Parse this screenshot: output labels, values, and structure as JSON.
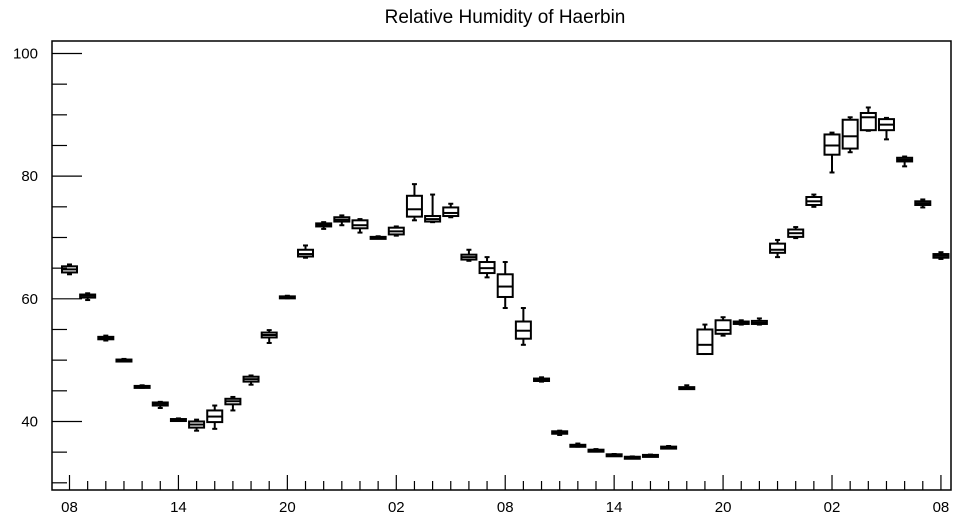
{
  "chart_data": {
    "type": "box",
    "title": "Relative Humidity of Haerbin",
    "xlabel": "",
    "ylabel": "",
    "ylim": [
      29,
      102
    ],
    "x_tick_labels": [
      "08",
      "14",
      "20",
      "02",
      "08",
      "14",
      "20",
      "02",
      "08"
    ],
    "x_tick_hours": [
      0,
      6,
      12,
      18,
      24,
      30,
      36,
      42,
      48
    ],
    "y_tick_labels": [
      "40",
      "60",
      "80",
      "100"
    ],
    "y_tick_values": [
      40,
      60,
      80,
      100
    ],
    "grid": false,
    "legend": "none",
    "boxes": [
      {
        "hour": 0,
        "min": 64.0,
        "q1": 64.3,
        "median": 64.8,
        "q3": 65.3,
        "max": 65.6
      },
      {
        "hour": 1,
        "min": 59.8,
        "q1": 60.2,
        "median": 60.5,
        "q3": 60.7,
        "max": 60.9
      },
      {
        "hour": 2,
        "min": 53.2,
        "q1": 53.4,
        "median": 53.6,
        "q3": 53.8,
        "max": 54.0
      },
      {
        "hour": 3,
        "min": 49.8,
        "q1": 49.9,
        "median": 50.0,
        "q3": 50.1,
        "max": 50.2
      },
      {
        "hour": 4,
        "min": 45.5,
        "q1": 45.6,
        "median": 45.7,
        "q3": 45.8,
        "max": 45.9
      },
      {
        "hour": 5,
        "min": 42.2,
        "q1": 42.6,
        "median": 42.9,
        "q3": 43.1,
        "max": 43.2
      },
      {
        "hour": 6,
        "min": 40.1,
        "q1": 40.2,
        "median": 40.3,
        "q3": 40.4,
        "max": 40.5
      },
      {
        "hour": 7,
        "min": 38.5,
        "q1": 39.0,
        "median": 39.5,
        "q3": 40.0,
        "max": 40.3
      },
      {
        "hour": 8,
        "min": 38.8,
        "q1": 39.9,
        "median": 40.8,
        "q3": 41.8,
        "max": 42.6
      },
      {
        "hour": 9,
        "min": 41.8,
        "q1": 42.8,
        "median": 43.3,
        "q3": 43.7,
        "max": 44.0
      },
      {
        "hour": 10,
        "min": 46.0,
        "q1": 46.5,
        "median": 46.9,
        "q3": 47.3,
        "max": 47.5
      },
      {
        "hour": 11,
        "min": 52.8,
        "q1": 53.7,
        "median": 54.1,
        "q3": 54.5,
        "max": 54.9
      },
      {
        "hour": 12,
        "min": 60.1,
        "q1": 60.2,
        "median": 60.3,
        "q3": 60.4,
        "max": 60.5
      },
      {
        "hour": 13,
        "min": 66.7,
        "q1": 66.9,
        "median": 67.3,
        "q3": 68.0,
        "max": 68.7
      },
      {
        "hour": 14,
        "min": 71.4,
        "q1": 71.8,
        "median": 72.1,
        "q3": 72.3,
        "max": 72.5
      },
      {
        "hour": 15,
        "min": 72.0,
        "q1": 72.6,
        "median": 72.9,
        "q3": 73.3,
        "max": 73.6
      },
      {
        "hour": 16,
        "min": 70.8,
        "q1": 71.5,
        "median": 72.0,
        "q3": 72.8,
        "max": 73.0
      },
      {
        "hour": 17,
        "min": 69.9,
        "q1": 70.0,
        "median": 70.0,
        "q3": 70.1,
        "max": 70.2
      },
      {
        "hour": 18,
        "min": 70.3,
        "q1": 70.5,
        "median": 71.0,
        "q3": 71.6,
        "max": 71.8
      },
      {
        "hour": 19,
        "min": 72.8,
        "q1": 73.4,
        "median": 74.6,
        "q3": 76.8,
        "max": 78.7
      },
      {
        "hour": 20,
        "min": 72.5,
        "q1": 72.6,
        "median": 73.0,
        "q3": 73.5,
        "max": 77.0
      },
      {
        "hour": 21,
        "min": 73.3,
        "q1": 73.5,
        "median": 74.0,
        "q3": 74.9,
        "max": 75.5
      },
      {
        "hour": 22,
        "min": 66.2,
        "q1": 66.4,
        "median": 66.8,
        "q3": 67.2,
        "max": 68.0
      },
      {
        "hour": 23,
        "min": 63.5,
        "q1": 64.2,
        "median": 65.0,
        "q3": 66.0,
        "max": 66.8
      },
      {
        "hour": 24,
        "min": 58.5,
        "q1": 60.3,
        "median": 62.0,
        "q3": 64.0,
        "max": 66.0
      },
      {
        "hour": 25,
        "min": 52.5,
        "q1": 53.5,
        "median": 54.8,
        "q3": 56.3,
        "max": 58.5
      },
      {
        "hour": 26,
        "min": 46.5,
        "q1": 46.6,
        "median": 46.8,
        "q3": 47.0,
        "max": 47.2
      },
      {
        "hour": 27,
        "min": 37.8,
        "q1": 38.0,
        "median": 38.2,
        "q3": 38.4,
        "max": 38.5
      },
      {
        "hour": 28,
        "min": 35.9,
        "q1": 36.0,
        "median": 36.1,
        "q3": 36.2,
        "max": 36.4
      },
      {
        "hour": 29,
        "min": 35.1,
        "q1": 35.2,
        "median": 35.3,
        "q3": 35.4,
        "max": 35.5
      },
      {
        "hour": 30,
        "min": 34.5,
        "q1": 34.55,
        "median": 34.6,
        "q3": 34.65,
        "max": 34.7
      },
      {
        "hour": 31,
        "min": 34.1,
        "q1": 34.15,
        "median": 34.2,
        "q3": 34.25,
        "max": 34.3
      },
      {
        "hour": 32,
        "min": 34.4,
        "q1": 34.45,
        "median": 34.5,
        "q3": 34.55,
        "max": 34.6
      },
      {
        "hour": 33,
        "min": 35.6,
        "q1": 35.7,
        "median": 35.8,
        "q3": 35.9,
        "max": 36.0
      },
      {
        "hour": 34,
        "min": 45.3,
        "q1": 45.4,
        "median": 45.5,
        "q3": 45.6,
        "max": 45.9
      },
      {
        "hour": 35,
        "min": 51.0,
        "q1": 51.0,
        "median": 52.5,
        "q3": 55.0,
        "max": 55.8
      },
      {
        "hour": 36,
        "min": 54.0,
        "q1": 54.3,
        "median": 54.9,
        "q3": 56.5,
        "max": 57.0
      },
      {
        "hour": 37,
        "min": 55.8,
        "q1": 55.9,
        "median": 56.1,
        "q3": 56.3,
        "max": 56.5
      },
      {
        "hour": 38,
        "min": 55.8,
        "q1": 55.9,
        "median": 56.1,
        "q3": 56.4,
        "max": 56.8
      },
      {
        "hour": 39,
        "min": 66.8,
        "q1": 67.5,
        "median": 68.0,
        "q3": 69.0,
        "max": 69.6
      },
      {
        "hour": 40,
        "min": 69.9,
        "q1": 70.1,
        "median": 70.7,
        "q3": 71.3,
        "max": 71.7
      },
      {
        "hour": 41,
        "min": 75.0,
        "q1": 75.3,
        "median": 75.9,
        "q3": 76.6,
        "max": 77.0
      },
      {
        "hour": 42,
        "min": 80.6,
        "q1": 83.5,
        "median": 85.0,
        "q3": 86.8,
        "max": 87.1
      },
      {
        "hour": 43,
        "min": 83.9,
        "q1": 84.5,
        "median": 86.5,
        "q3": 89.2,
        "max": 89.6
      },
      {
        "hour": 44,
        "min": 87.4,
        "q1": 87.5,
        "median": 89.6,
        "q3": 90.3,
        "max": 91.2
      },
      {
        "hour": 45,
        "min": 86.0,
        "q1": 87.5,
        "median": 88.4,
        "q3": 89.3,
        "max": 89.5
      },
      {
        "hour": 46,
        "min": 81.6,
        "q1": 82.4,
        "median": 82.7,
        "q3": 83.0,
        "max": 83.2
      },
      {
        "hour": 47,
        "min": 74.9,
        "q1": 75.3,
        "median": 75.6,
        "q3": 75.9,
        "max": 76.2
      },
      {
        "hour": 48,
        "min": 66.5,
        "q1": 66.7,
        "median": 67.0,
        "q3": 67.3,
        "max": 67.6
      }
    ]
  }
}
